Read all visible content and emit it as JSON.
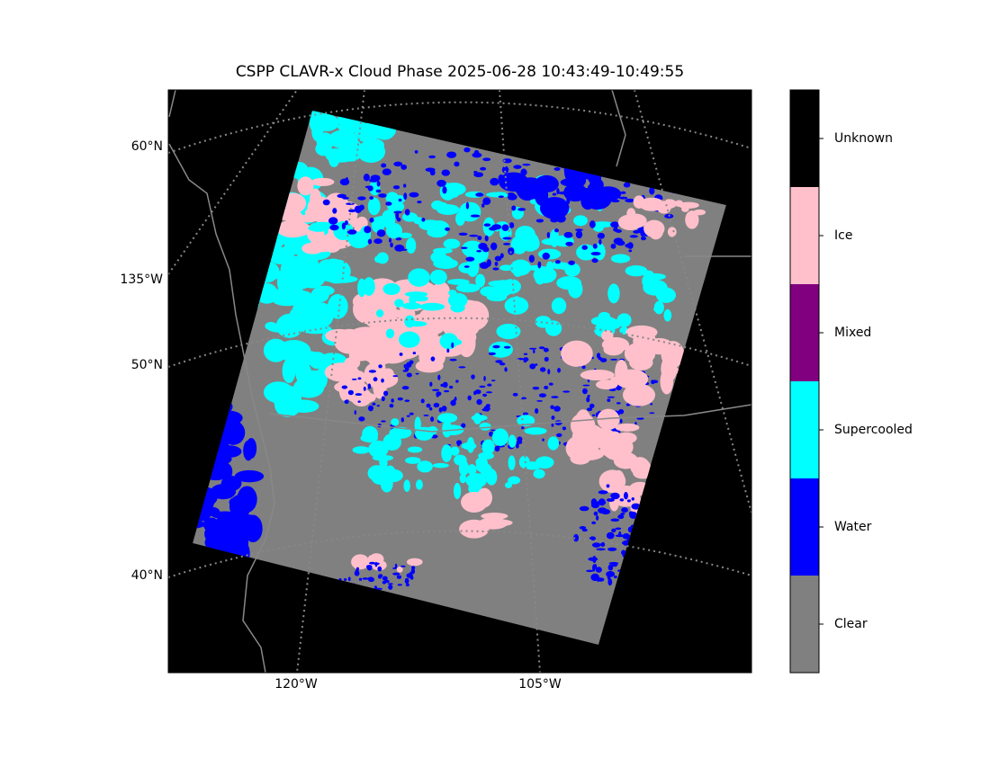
{
  "title": "CSPP CLAVR-x Cloud Phase 2025-06-28 10:43:49-10:49:55",
  "axes": {
    "left_labels": [
      "60°N",
      "135°W",
      "50°N",
      "40°N"
    ],
    "bottom_labels": [
      "120°W",
      "105°W"
    ]
  },
  "colorbar": {
    "classes": [
      {
        "label": "Clear",
        "color": "#808080"
      },
      {
        "label": "Water",
        "color": "#0000ff"
      },
      {
        "label": "Supercooled",
        "color": "#00ffff"
      },
      {
        "label": "Mixed",
        "color": "#800080"
      },
      {
        "label": "Ice",
        "color": "#ffc0cb"
      },
      {
        "label": "Unknown",
        "color": "#000000"
      }
    ]
  }
}
